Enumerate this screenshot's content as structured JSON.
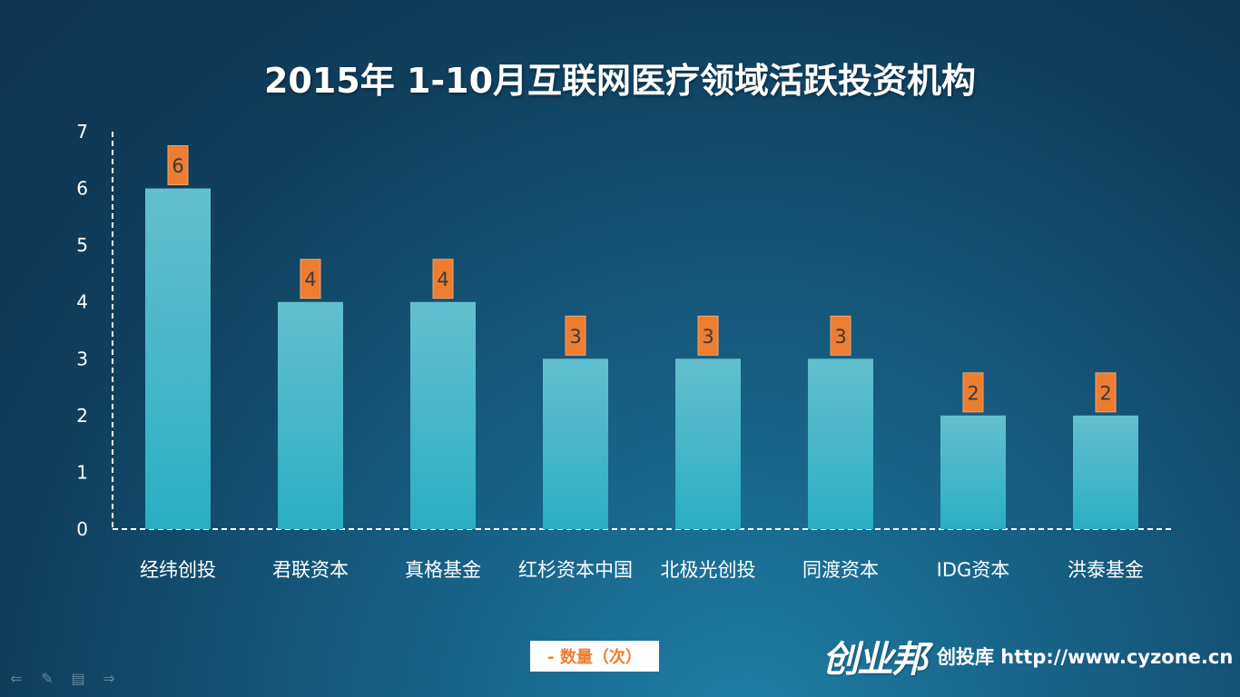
{
  "chart_data": {
    "type": "bar",
    "title": "2015年 1-10月互联网医疗领域活跃投资机构",
    "categories": [
      "经纬创投",
      "君联资本",
      "真格基金",
      "红杉资本中国",
      "北极光创投",
      "同渡资本",
      "IDG资本",
      "洪泰基金"
    ],
    "series": [
      {
        "name": "- 数量（次）",
        "values": [
          6,
          4,
          4,
          3,
          3,
          3,
          2,
          2
        ]
      }
    ],
    "ylim": [
      0,
      7
    ],
    "yticks": [
      0,
      1,
      2,
      3,
      4,
      5,
      6,
      7
    ],
    "xlabel": "",
    "ylabel": "",
    "grid": false,
    "legend_position": "bottom",
    "data_labels": true,
    "colors": {
      "bar_top": "#63bfcf",
      "bar_bottom": "#2aaec3",
      "label_box": "#ed7d31",
      "axis": "#ffffff"
    }
  },
  "brand": {
    "logo_text": "创业邦",
    "text": "创投库 http://www.cyzone.cn"
  },
  "nav_icons": [
    "arrow-left-icon",
    "pen-icon",
    "menu-icon",
    "arrow-right-icon"
  ]
}
